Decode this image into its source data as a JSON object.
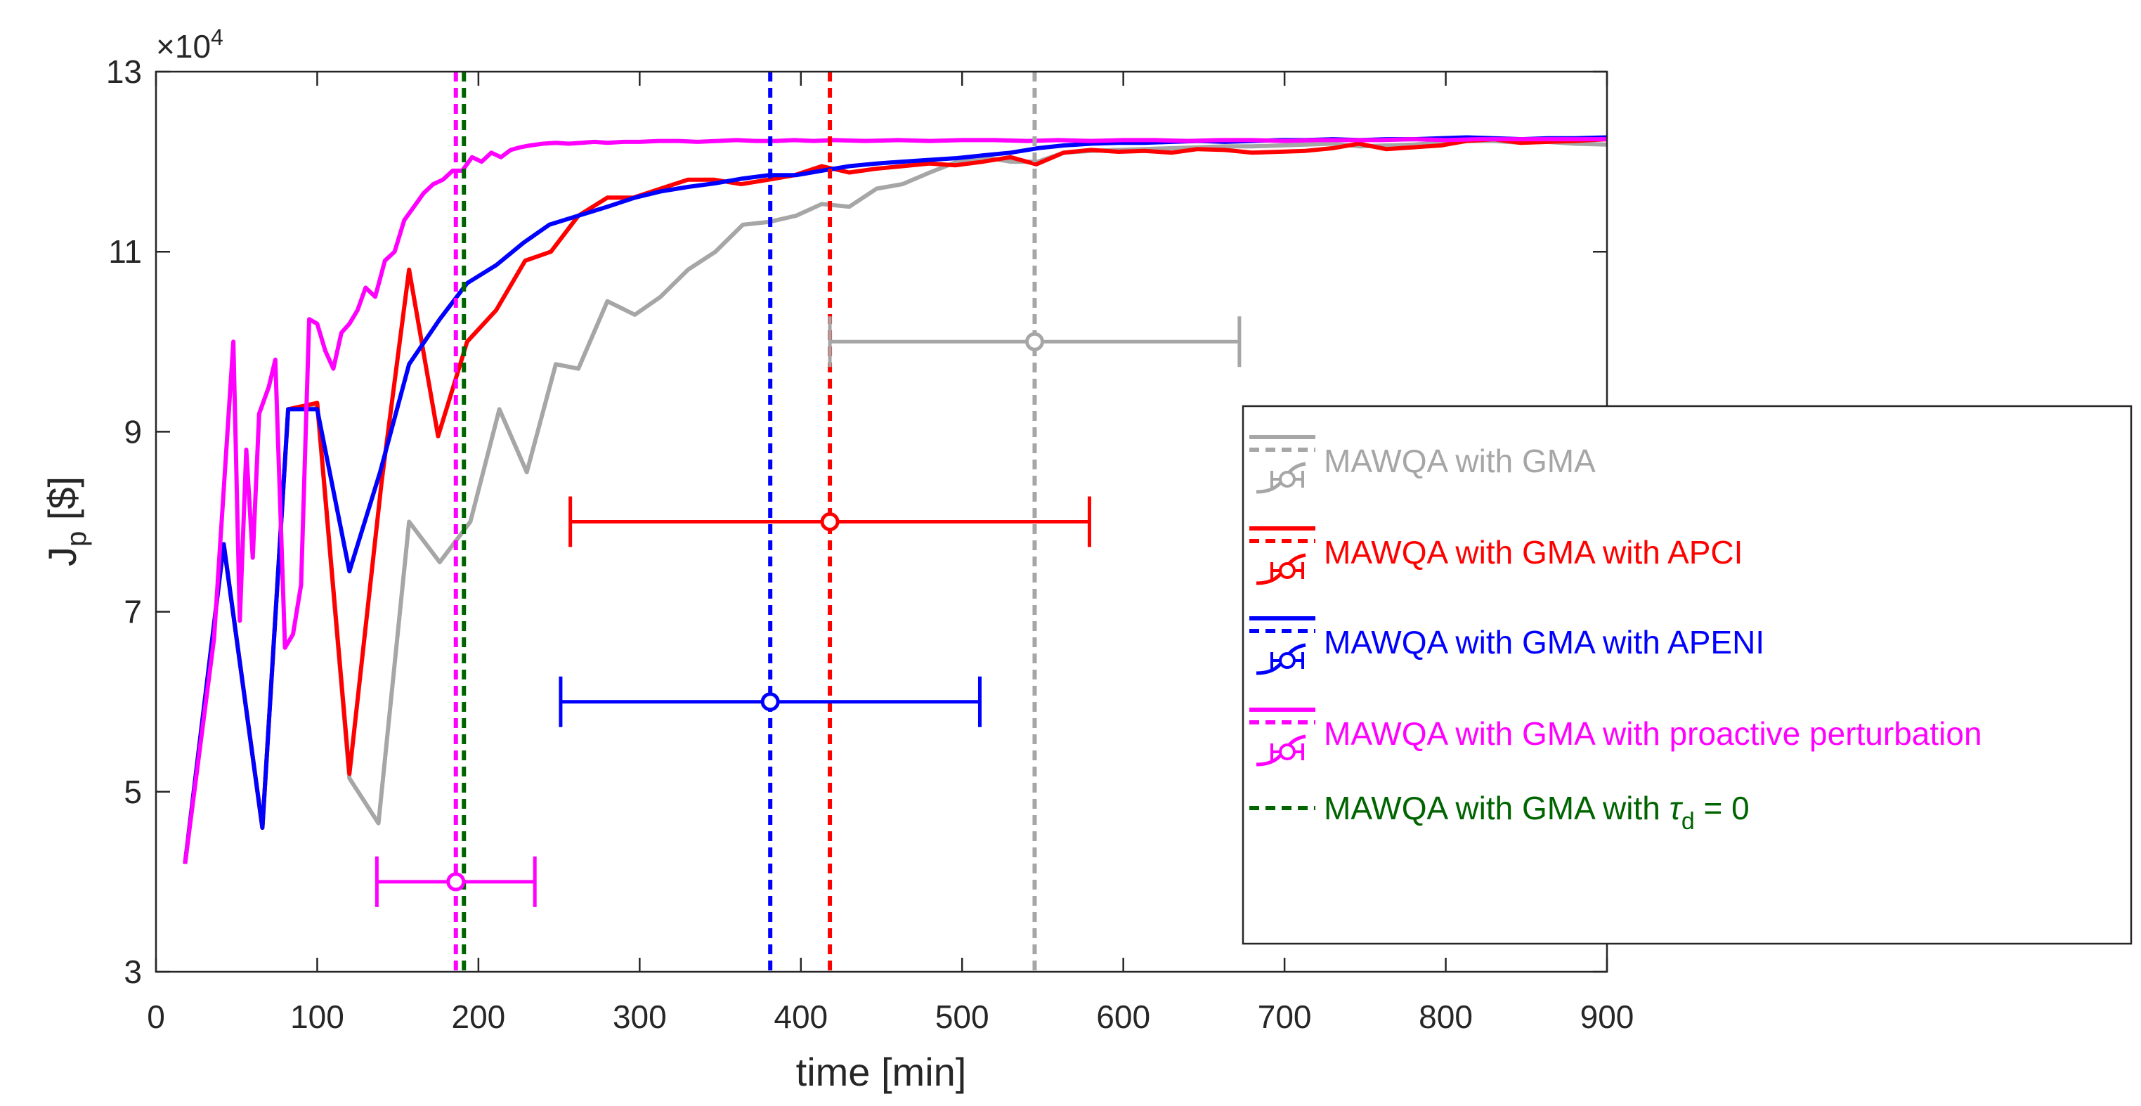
{
  "chart_data": {
    "type": "line",
    "title": "",
    "xlabel": "time [min]",
    "ylabel_main": "J",
    "ylabel_sub": "p",
    "ylabel_unit": " [$]",
    "xlim": [
      0,
      900
    ],
    "ylim": [
      30000,
      130000
    ],
    "xticks": [
      0,
      100,
      200,
      300,
      400,
      500,
      600,
      700,
      800,
      900
    ],
    "yticks": [
      30000,
      50000,
      70000,
      90000,
      110000,
      130000
    ],
    "ytick_labels": [
      "3",
      "5",
      "7",
      "9",
      "11",
      "13"
    ],
    "xtick_labels": [
      "0",
      "100",
      "200",
      "300",
      "400",
      "500",
      "600",
      "700",
      "800",
      "900"
    ],
    "exponent_base": "×10",
    "exponent_power": "4",
    "grid": false,
    "legend_position": "right",
    "series": [
      {
        "name": "MAWQA with GMA",
        "color": "#a6a6a6",
        "x": [
          18,
          42,
          66,
          82,
          100,
          120,
          138,
          157,
          176,
          195,
          213,
          230,
          248,
          262,
          280,
          297,
          313,
          330,
          347,
          364,
          380,
          397,
          413,
          430,
          447,
          463,
          480,
          497,
          513,
          530,
          547,
          563,
          580,
          597,
          613,
          630,
          647,
          663,
          680,
          697,
          713,
          730,
          747,
          763,
          780,
          797,
          813,
          830,
          847,
          863,
          880,
          900
        ],
        "y": [
          42000,
          77500,
          46000,
          92500,
          93000,
          51500,
          46500,
          80000,
          75500,
          80000,
          92500,
          85500,
          97500,
          97000,
          104500,
          103000,
          105000,
          108000,
          110000,
          113000,
          113300,
          114000,
          115300,
          115000,
          117000,
          117500,
          118800,
          120000,
          120500,
          120000,
          120000,
          121000,
          121200,
          121300,
          121400,
          121500,
          121600,
          121700,
          121700,
          121800,
          121900,
          122000,
          121700,
          121800,
          121900,
          122100,
          122300,
          122300,
          122100,
          122200,
          122000,
          121900
        ]
      },
      {
        "name": "MAWQA with GMA with APCI",
        "color": "#ff0000",
        "x": [
          18,
          42,
          66,
          82,
          100,
          120,
          140,
          157,
          175,
          193,
          211,
          229,
          245,
          262,
          280,
          296,
          313,
          330,
          346,
          363,
          380,
          396,
          413,
          430,
          446,
          463,
          480,
          496,
          513,
          530,
          546,
          563,
          580,
          597,
          613,
          630,
          646,
          663,
          680,
          697,
          713,
          730,
          746,
          763,
          780,
          797,
          813,
          830,
          846,
          863,
          880,
          900
        ],
        "y": [
          42000,
          77500,
          46000,
          92500,
          93200,
          52000,
          84500,
          108000,
          89500,
          100000,
          103500,
          109000,
          110000,
          114000,
          116000,
          116000,
          117000,
          118000,
          118000,
          117500,
          118000,
          118500,
          119500,
          118800,
          119200,
          119500,
          119800,
          119600,
          120000,
          120500,
          119700,
          121000,
          121300,
          121100,
          121200,
          121000,
          121400,
          121300,
          121000,
          121100,
          121200,
          121500,
          122000,
          121400,
          121600,
          121800,
          122300,
          122500,
          122100,
          122200,
          122300,
          122500
        ]
      },
      {
        "name": "MAWQA with GMA with APENI",
        "color": "#0000ff",
        "x": [
          18,
          42,
          66,
          82,
          100,
          120,
          139,
          157,
          176,
          193,
          211,
          228,
          244,
          262,
          280,
          297,
          313,
          330,
          347,
          363,
          380,
          397,
          413,
          430,
          447,
          463,
          480,
          497,
          513,
          530,
          547,
          563,
          580,
          597,
          613,
          630,
          647,
          663,
          680,
          697,
          713,
          730,
          747,
          763,
          780,
          797,
          813,
          830,
          847,
          863,
          880,
          900
        ],
        "y": [
          42000,
          77500,
          46000,
          92500,
          92500,
          74500,
          85500,
          97500,
          102500,
          106500,
          108500,
          111000,
          113000,
          114000,
          115000,
          116000,
          116700,
          117200,
          117600,
          118100,
          118500,
          118500,
          119000,
          119500,
          119800,
          120000,
          120200,
          120400,
          120700,
          121000,
          121500,
          121800,
          122000,
          122100,
          122100,
          122200,
          122300,
          122200,
          122300,
          122400,
          122400,
          122500,
          122400,
          122500,
          122500,
          122600,
          122700,
          122600,
          122500,
          122600,
          122600,
          122700
        ]
      },
      {
        "name": "MAWQA with GMA with proactive perturbation",
        "color": "#ff00ff",
        "x": [
          18,
          36,
          48,
          52,
          56,
          60,
          64,
          70,
          74,
          80,
          85,
          90,
          95,
          100,
          105,
          110,
          115,
          120,
          125,
          130,
          136,
          142,
          148,
          154,
          160,
          166,
          172,
          178,
          184,
          190,
          196,
          202,
          208,
          214,
          220,
          226,
          232,
          240,
          248,
          256,
          264,
          272,
          280,
          290,
          300,
          312,
          324,
          336,
          348,
          360,
          372,
          384,
          396,
          408,
          420,
          440,
          460,
          480,
          500,
          520,
          540,
          560,
          580,
          600,
          620,
          640,
          660,
          680,
          700,
          720,
          740,
          760,
          780,
          800,
          820,
          840,
          860,
          880,
          900
        ],
        "y": [
          42000,
          67000,
          100000,
          69000,
          88000,
          76000,
          92000,
          95000,
          98000,
          66000,
          67500,
          73000,
          102500,
          102000,
          99000,
          97000,
          101000,
          102000,
          103500,
          106000,
          105000,
          109000,
          110000,
          113500,
          115000,
          116500,
          117500,
          118000,
          119000,
          119000,
          120500,
          120000,
          121000,
          120500,
          121300,
          121600,
          121800,
          122000,
          122100,
          122000,
          122100,
          122200,
          122100,
          122200,
          122200,
          122300,
          122300,
          122200,
          122300,
          122400,
          122300,
          122300,
          122400,
          122300,
          122400,
          122300,
          122400,
          122300,
          122400,
          122400,
          122300,
          122400,
          122300,
          122400,
          122400,
          122300,
          122400,
          122400,
          122300,
          122400,
          122400,
          122400,
          122500,
          122400,
          122500,
          122500,
          122500,
          122500,
          122500
        ]
      }
    ],
    "markers": [
      {
        "name": "MAWQA with GMA",
        "color": "#a6a6a6",
        "vline_x": 545,
        "mean": 545,
        "lower": 418,
        "upper": 672,
        "y": 100000
      },
      {
        "name": "MAWQA with GMA with APCI",
        "color": "#ff0000",
        "vline_x": 418,
        "mean": 418,
        "lower": 257,
        "upper": 579,
        "y": 80000
      },
      {
        "name": "MAWQA with GMA with APENI",
        "color": "#0000ff",
        "vline_x": 381,
        "mean": 381,
        "lower": 251,
        "upper": 511,
        "y": 60000
      },
      {
        "name": "MAWQA with GMA with proactive perturbation",
        "color": "#ff00ff",
        "vline_x": 186,
        "mean": 186,
        "lower": 137,
        "upper": 235,
        "y": 40000
      },
      {
        "name": "MAWQA with GMA with τd = 0",
        "color": "#006400",
        "vline_x": 191
      }
    ],
    "legend": [
      {
        "label": "MAWQA with GMA",
        "color": "#a6a6a6",
        "style": "full"
      },
      {
        "label": "MAWQA with GMA with APCI",
        "color": "#ff0000",
        "style": "full"
      },
      {
        "label": "MAWQA with GMA with APENI",
        "color": "#0000ff",
        "style": "full"
      },
      {
        "label": "MAWQA with GMA with proactive perturbation",
        "color": "#ff00ff",
        "style": "full"
      },
      {
        "label_prefix": "MAWQA with GMA with ",
        "label_symbol": "τ",
        "label_sub": "d",
        "label_suffix": " = 0",
        "color": "#006400",
        "style": "dashed-only"
      }
    ]
  }
}
